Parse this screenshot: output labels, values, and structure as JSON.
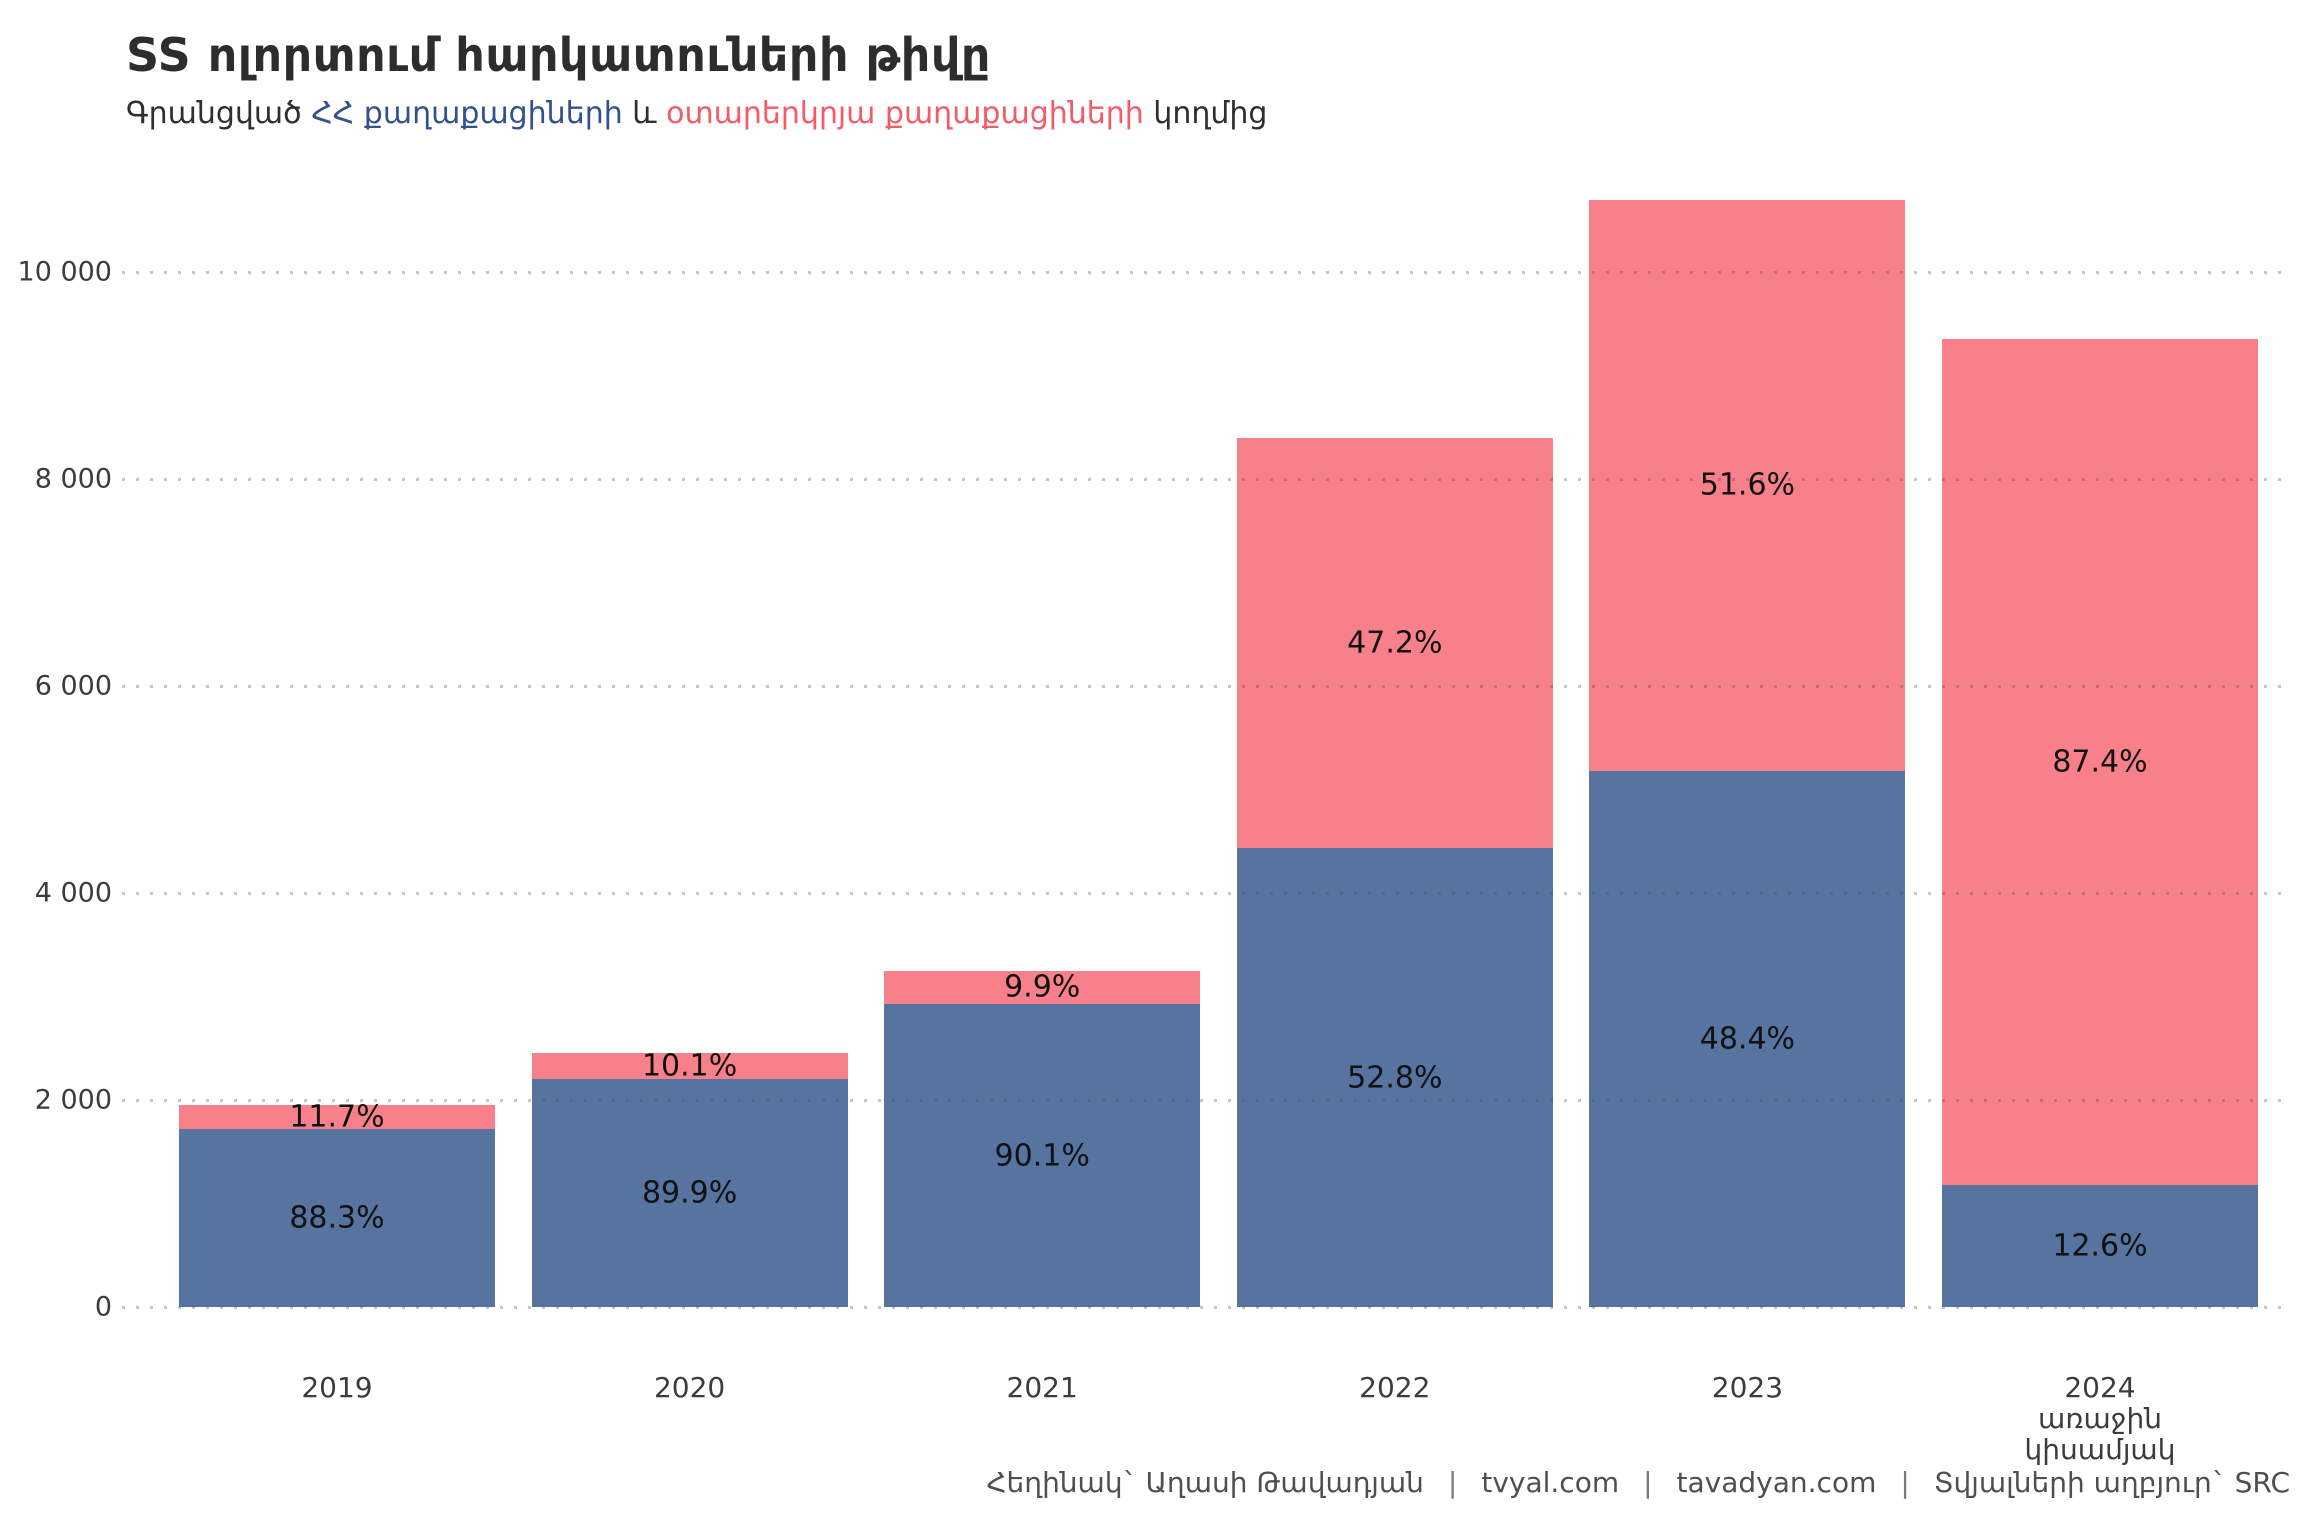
{
  "title": "SS ոլորտում հարկատուների թիվը",
  "subtitle": {
    "part1": "Գրանցված ",
    "blue_text": "ՀՀ քաղաքացիների",
    "part2": " և ",
    "red_text": "օտարերկրյա քաղաքացիների",
    "part3": " կողմից"
  },
  "footer": {
    "author": "Հեղինակ` Աղասի Թավադյան",
    "site1": "tvyal.com",
    "site2": "tavadyan.com",
    "source": "Տվյալների աղբյուր` SRC",
    "separator": "|"
  },
  "colors": {
    "bar_blue": "#57739F",
    "bar_pink": "#F8808A",
    "subtitle_blue": "#31528C",
    "subtitle_red": "#F45B67",
    "title_text": "#2D2D2D",
    "axis_text": "#3C3C3C",
    "gridline": "#C9C9C9",
    "label_text": "#111111"
  },
  "chart_data": {
    "type": "bar",
    "stacked": true,
    "title": "SS ոլորտում հարկատուների թիվը",
    "subtitle": "Գրանցված ՀՀ քաղաքացիների և օտարերկրյա քաղաքացիների կողմից",
    "categories_lines": [
      [
        "2019"
      ],
      [
        "2020"
      ],
      [
        "2021"
      ],
      [
        "2022"
      ],
      [
        "2023"
      ],
      [
        "2024",
        "առաջին",
        "կիսամյակ"
      ]
    ],
    "series": [
      {
        "name": "ՀՀ քաղաքացիներ",
        "color": "#57739F",
        "values": [
          1722,
          2203,
          2928,
          4435,
          5179,
          1178
        ],
        "labels": [
          "88.3%",
          "89.9%",
          "90.1%",
          "52.8%",
          "48.4%",
          "12.6%"
        ]
      },
      {
        "name": "օտարերկրյա քաղաքացիներ",
        "color": "#F8808A",
        "values": [
          228,
          247,
          322,
          3965,
          5521,
          8172
        ],
        "labels": [
          "11.7%",
          "10.1%",
          "9.9%",
          "47.2%",
          "51.6%",
          "87.4%"
        ]
      }
    ],
    "totals": [
      1950,
      2450,
      3250,
      8400,
      10700,
      9350
    ],
    "y_ticks": [
      "0",
      "2 000",
      "4 000",
      "6 000",
      "8 000",
      "10 000"
    ],
    "y_tick_values": [
      0,
      2000,
      4000,
      6000,
      8000,
      10000
    ],
    "ylim": [
      0,
      10700
    ],
    "grid": "dotted-horizontal, drawn over bars",
    "legend_position": "none (colors referenced in subtitle)"
  }
}
